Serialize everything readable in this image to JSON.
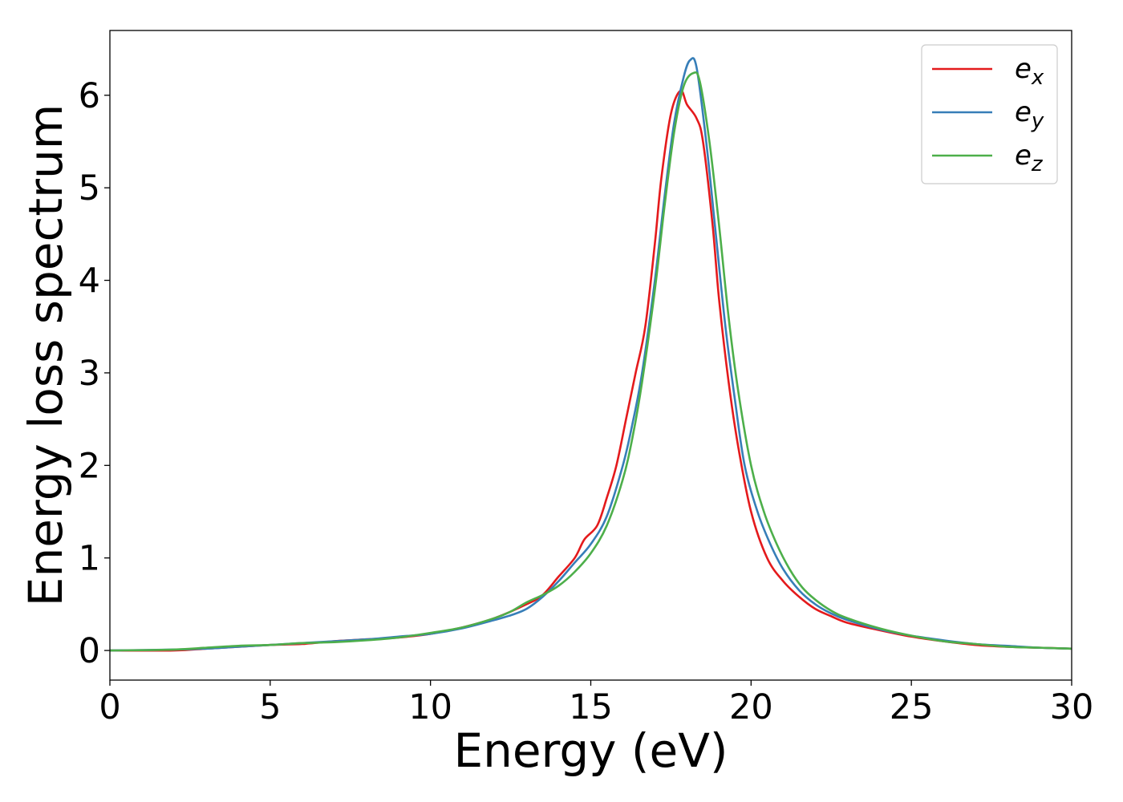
{
  "chart_data": {
    "type": "line",
    "xlabel": "Energy (eV)",
    "ylabel": "Energy loss spectrum",
    "xlim": [
      0,
      30
    ],
    "ylim": [
      -0.32,
      6.7
    ],
    "xticks": [
      {
        "value": 0,
        "label": "0"
      },
      {
        "value": 5,
        "label": "5"
      },
      {
        "value": 10,
        "label": "10"
      },
      {
        "value": 15,
        "label": "15"
      },
      {
        "value": 20,
        "label": "20"
      },
      {
        "value": 25,
        "label": "25"
      },
      {
        "value": 30,
        "label": "30"
      }
    ],
    "yticks": [
      {
        "value": 0,
        "label": "0"
      },
      {
        "value": 1,
        "label": "1"
      },
      {
        "value": 2,
        "label": "2"
      },
      {
        "value": 3,
        "label": "3"
      },
      {
        "value": 4,
        "label": "4"
      },
      {
        "value": 5,
        "label": "5"
      },
      {
        "value": 6,
        "label": "6"
      }
    ],
    "grid": false,
    "legend_position": "top-right",
    "series": [
      {
        "name": "e",
        "subscript": "x",
        "color": "#e41a1c",
        "points": [
          [
            0,
            0.0
          ],
          [
            2,
            0.0
          ],
          [
            3,
            0.02
          ],
          [
            4,
            0.04
          ],
          [
            5,
            0.06
          ],
          [
            6,
            0.07
          ],
          [
            7,
            0.1
          ],
          [
            8,
            0.12
          ],
          [
            9,
            0.14
          ],
          [
            10,
            0.18
          ],
          [
            11,
            0.25
          ],
          [
            12,
            0.35
          ],
          [
            13,
            0.5
          ],
          [
            13.5,
            0.6
          ],
          [
            14,
            0.8
          ],
          [
            14.5,
            1.0
          ],
          [
            14.8,
            1.2
          ],
          [
            15.2,
            1.35
          ],
          [
            15.5,
            1.65
          ],
          [
            15.8,
            2.0
          ],
          [
            16.1,
            2.5
          ],
          [
            16.4,
            3.0
          ],
          [
            16.7,
            3.5
          ],
          [
            17.0,
            4.4
          ],
          [
            17.2,
            5.1
          ],
          [
            17.5,
            5.8
          ],
          [
            17.8,
            6.05
          ],
          [
            18.0,
            5.9
          ],
          [
            18.3,
            5.75
          ],
          [
            18.5,
            5.5
          ],
          [
            18.8,
            4.6
          ],
          [
            19.0,
            3.8
          ],
          [
            19.3,
            2.9
          ],
          [
            19.6,
            2.2
          ],
          [
            20.0,
            1.5
          ],
          [
            20.5,
            1.0
          ],
          [
            21,
            0.75
          ],
          [
            21.5,
            0.58
          ],
          [
            22,
            0.45
          ],
          [
            22.5,
            0.37
          ],
          [
            23,
            0.3
          ],
          [
            24,
            0.22
          ],
          [
            25,
            0.15
          ],
          [
            26,
            0.1
          ],
          [
            27,
            0.06
          ],
          [
            28,
            0.04
          ],
          [
            29,
            0.03
          ],
          [
            30,
            0.02
          ]
        ]
      },
      {
        "name": "e",
        "subscript": "y",
        "color": "#377eb8",
        "points": [
          [
            0,
            0.0
          ],
          [
            2,
            0.01
          ],
          [
            3,
            0.02
          ],
          [
            4,
            0.04
          ],
          [
            5,
            0.06
          ],
          [
            6,
            0.08
          ],
          [
            7,
            0.1
          ],
          [
            8,
            0.12
          ],
          [
            9,
            0.15
          ],
          [
            10,
            0.18
          ],
          [
            11,
            0.24
          ],
          [
            12,
            0.33
          ],
          [
            12.5,
            0.38
          ],
          [
            13,
            0.45
          ],
          [
            13.5,
            0.58
          ],
          [
            14,
            0.75
          ],
          [
            14.5,
            0.95
          ],
          [
            15,
            1.15
          ],
          [
            15.5,
            1.45
          ],
          [
            16,
            2.0
          ],
          [
            16.3,
            2.45
          ],
          [
            16.6,
            3.0
          ],
          [
            17.0,
            4.0
          ],
          [
            17.3,
            4.9
          ],
          [
            17.6,
            5.7
          ],
          [
            17.9,
            6.2
          ],
          [
            18.1,
            6.38
          ],
          [
            18.3,
            6.3
          ],
          [
            18.6,
            5.5
          ],
          [
            18.9,
            4.5
          ],
          [
            19.2,
            3.5
          ],
          [
            19.5,
            2.7
          ],
          [
            19.8,
            2.0
          ],
          [
            20.2,
            1.5
          ],
          [
            20.6,
            1.15
          ],
          [
            21,
            0.88
          ],
          [
            21.5,
            0.65
          ],
          [
            22,
            0.5
          ],
          [
            22.5,
            0.4
          ],
          [
            23,
            0.33
          ],
          [
            24,
            0.23
          ],
          [
            25,
            0.16
          ],
          [
            26,
            0.11
          ],
          [
            27,
            0.07
          ],
          [
            28,
            0.05
          ],
          [
            29,
            0.03
          ],
          [
            30,
            0.02
          ]
        ]
      },
      {
        "name": "e",
        "subscript": "z",
        "color": "#4daf4a",
        "points": [
          [
            0,
            0.0
          ],
          [
            2,
            0.01
          ],
          [
            3,
            0.03
          ],
          [
            4,
            0.05
          ],
          [
            5,
            0.06
          ],
          [
            6,
            0.08
          ],
          [
            7,
            0.09
          ],
          [
            8,
            0.11
          ],
          [
            9,
            0.14
          ],
          [
            10,
            0.19
          ],
          [
            11,
            0.25
          ],
          [
            12,
            0.35
          ],
          [
            12.5,
            0.42
          ],
          [
            13,
            0.52
          ],
          [
            13.5,
            0.6
          ],
          [
            14,
            0.7
          ],
          [
            14.5,
            0.85
          ],
          [
            15,
            1.05
          ],
          [
            15.5,
            1.35
          ],
          [
            16,
            1.85
          ],
          [
            16.3,
            2.3
          ],
          [
            16.6,
            2.9
          ],
          [
            17.0,
            3.9
          ],
          [
            17.3,
            4.8
          ],
          [
            17.6,
            5.6
          ],
          [
            17.9,
            6.1
          ],
          [
            18.2,
            6.24
          ],
          [
            18.4,
            6.15
          ],
          [
            18.7,
            5.5
          ],
          [
            19.0,
            4.6
          ],
          [
            19.3,
            3.6
          ],
          [
            19.6,
            2.8
          ],
          [
            20.0,
            2.0
          ],
          [
            20.4,
            1.5
          ],
          [
            20.8,
            1.15
          ],
          [
            21.2,
            0.88
          ],
          [
            21.6,
            0.68
          ],
          [
            22,
            0.55
          ],
          [
            22.5,
            0.43
          ],
          [
            23,
            0.35
          ],
          [
            24,
            0.24
          ],
          [
            25,
            0.16
          ],
          [
            26,
            0.1
          ],
          [
            27,
            0.07
          ],
          [
            28,
            0.04
          ],
          [
            29,
            0.03
          ],
          [
            30,
            0.02
          ]
        ]
      }
    ]
  }
}
